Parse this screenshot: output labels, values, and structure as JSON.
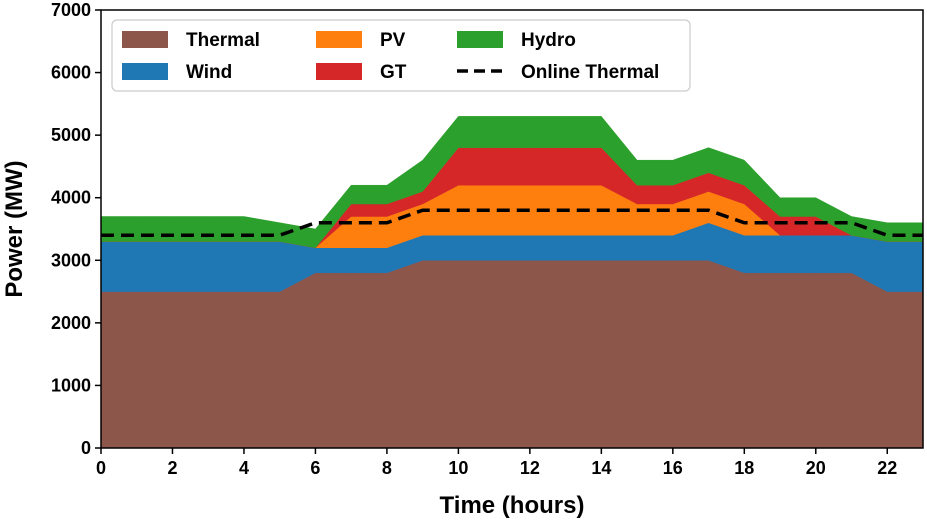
{
  "chart_data": {
    "type": "area",
    "stacked": true,
    "xlabel": "Time (hours)",
    "ylabel": "Power (MW)",
    "xlim": [
      0,
      23
    ],
    "ylim": [
      0,
      7000
    ],
    "xticks": [
      0,
      2,
      4,
      6,
      8,
      10,
      12,
      14,
      16,
      18,
      20,
      22
    ],
    "yticks": [
      0,
      1000,
      2000,
      3000,
      4000,
      5000,
      6000,
      7000
    ],
    "x": [
      0,
      1,
      2,
      3,
      4,
      5,
      6,
      7,
      8,
      9,
      10,
      11,
      12,
      13,
      14,
      15,
      16,
      17,
      18,
      19,
      20,
      21,
      22,
      23
    ],
    "series": [
      {
        "name": "Thermal",
        "color": "#8c564b",
        "values": [
          2500,
          2500,
          2500,
          2500,
          2500,
          2500,
          2800,
          2800,
          2800,
          3000,
          3000,
          3000,
          3000,
          3000,
          3000,
          3000,
          3000,
          3000,
          2800,
          2800,
          2800,
          2800,
          2500,
          2500
        ]
      },
      {
        "name": "Wind",
        "color": "#1f77b4",
        "values": [
          800,
          800,
          800,
          800,
          800,
          800,
          400,
          400,
          400,
          400,
          400,
          400,
          400,
          400,
          400,
          400,
          400,
          600,
          600,
          600,
          600,
          600,
          800,
          800
        ]
      },
      {
        "name": "PV",
        "color": "#ff7f0e",
        "values": [
          0,
          0,
          0,
          0,
          0,
          0,
          0,
          500,
          500,
          500,
          800,
          800,
          800,
          800,
          800,
          500,
          500,
          500,
          500,
          0,
          0,
          0,
          0,
          0
        ]
      },
      {
        "name": "GT",
        "color": "#d62728",
        "values": [
          0,
          0,
          0,
          0,
          0,
          0,
          0,
          200,
          200,
          200,
          600,
          600,
          600,
          600,
          600,
          300,
          300,
          300,
          300,
          300,
          300,
          0,
          0,
          0
        ]
      },
      {
        "name": "Hydro",
        "color": "#2ca02c",
        "values": [
          400,
          400,
          400,
          400,
          400,
          300,
          300,
          300,
          300,
          500,
          500,
          500,
          500,
          500,
          500,
          400,
          400,
          400,
          400,
          300,
          300,
          300,
          300,
          300
        ]
      }
    ],
    "line_series": {
      "name": "Online Thermal",
      "color": "#000000",
      "style": "dashed",
      "values": [
        3400,
        3400,
        3400,
        3400,
        3400,
        3400,
        3600,
        3600,
        3600,
        3800,
        3800,
        3800,
        3800,
        3800,
        3800,
        3800,
        3800,
        3800,
        3600,
        3600,
        3600,
        3600,
        3400,
        3400
      ]
    },
    "legend": {
      "placement": "top-left",
      "columns": 3,
      "order": [
        "Thermal",
        "Wind",
        "PV",
        "GT",
        "Hydro",
        "Online Thermal"
      ]
    }
  }
}
